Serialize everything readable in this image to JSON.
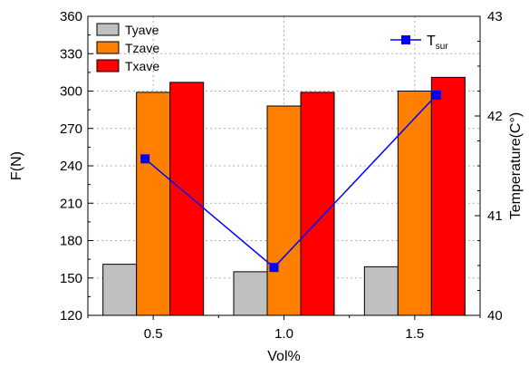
{
  "chart_data": {
    "type": "bar",
    "categories": [
      "0.5",
      "1.0",
      "1.5"
    ],
    "series": [
      {
        "name": "Tyave",
        "values": [
          161,
          155,
          159
        ],
        "color": "#c0c0c0"
      },
      {
        "name": "Tzave",
        "values": [
          299,
          288,
          300
        ],
        "color": "#ff8000"
      },
      {
        "name": "Txave",
        "values": [
          307,
          299,
          311
        ],
        "color": "#ff0000"
      }
    ],
    "line_series": {
      "name_main": "T",
      "name_sub": "sur",
      "values": [
        41.57,
        40.48,
        42.21
      ],
      "color": "#0000ff",
      "axis": "right"
    },
    "xlabel": "Vol%",
    "ylabel": "F(N)",
    "y2label": "Temperature(C°)",
    "ylim": [
      120,
      360
    ],
    "y2lim": [
      40,
      43
    ],
    "yticks": [
      "120",
      "150",
      "180",
      "210",
      "240",
      "270",
      "300",
      "330",
      "360"
    ],
    "y2ticks": [
      "40",
      "41",
      "42",
      "43"
    ],
    "grid": true,
    "legend_bars_position": "top-left",
    "legend_line_position": "top-right"
  }
}
